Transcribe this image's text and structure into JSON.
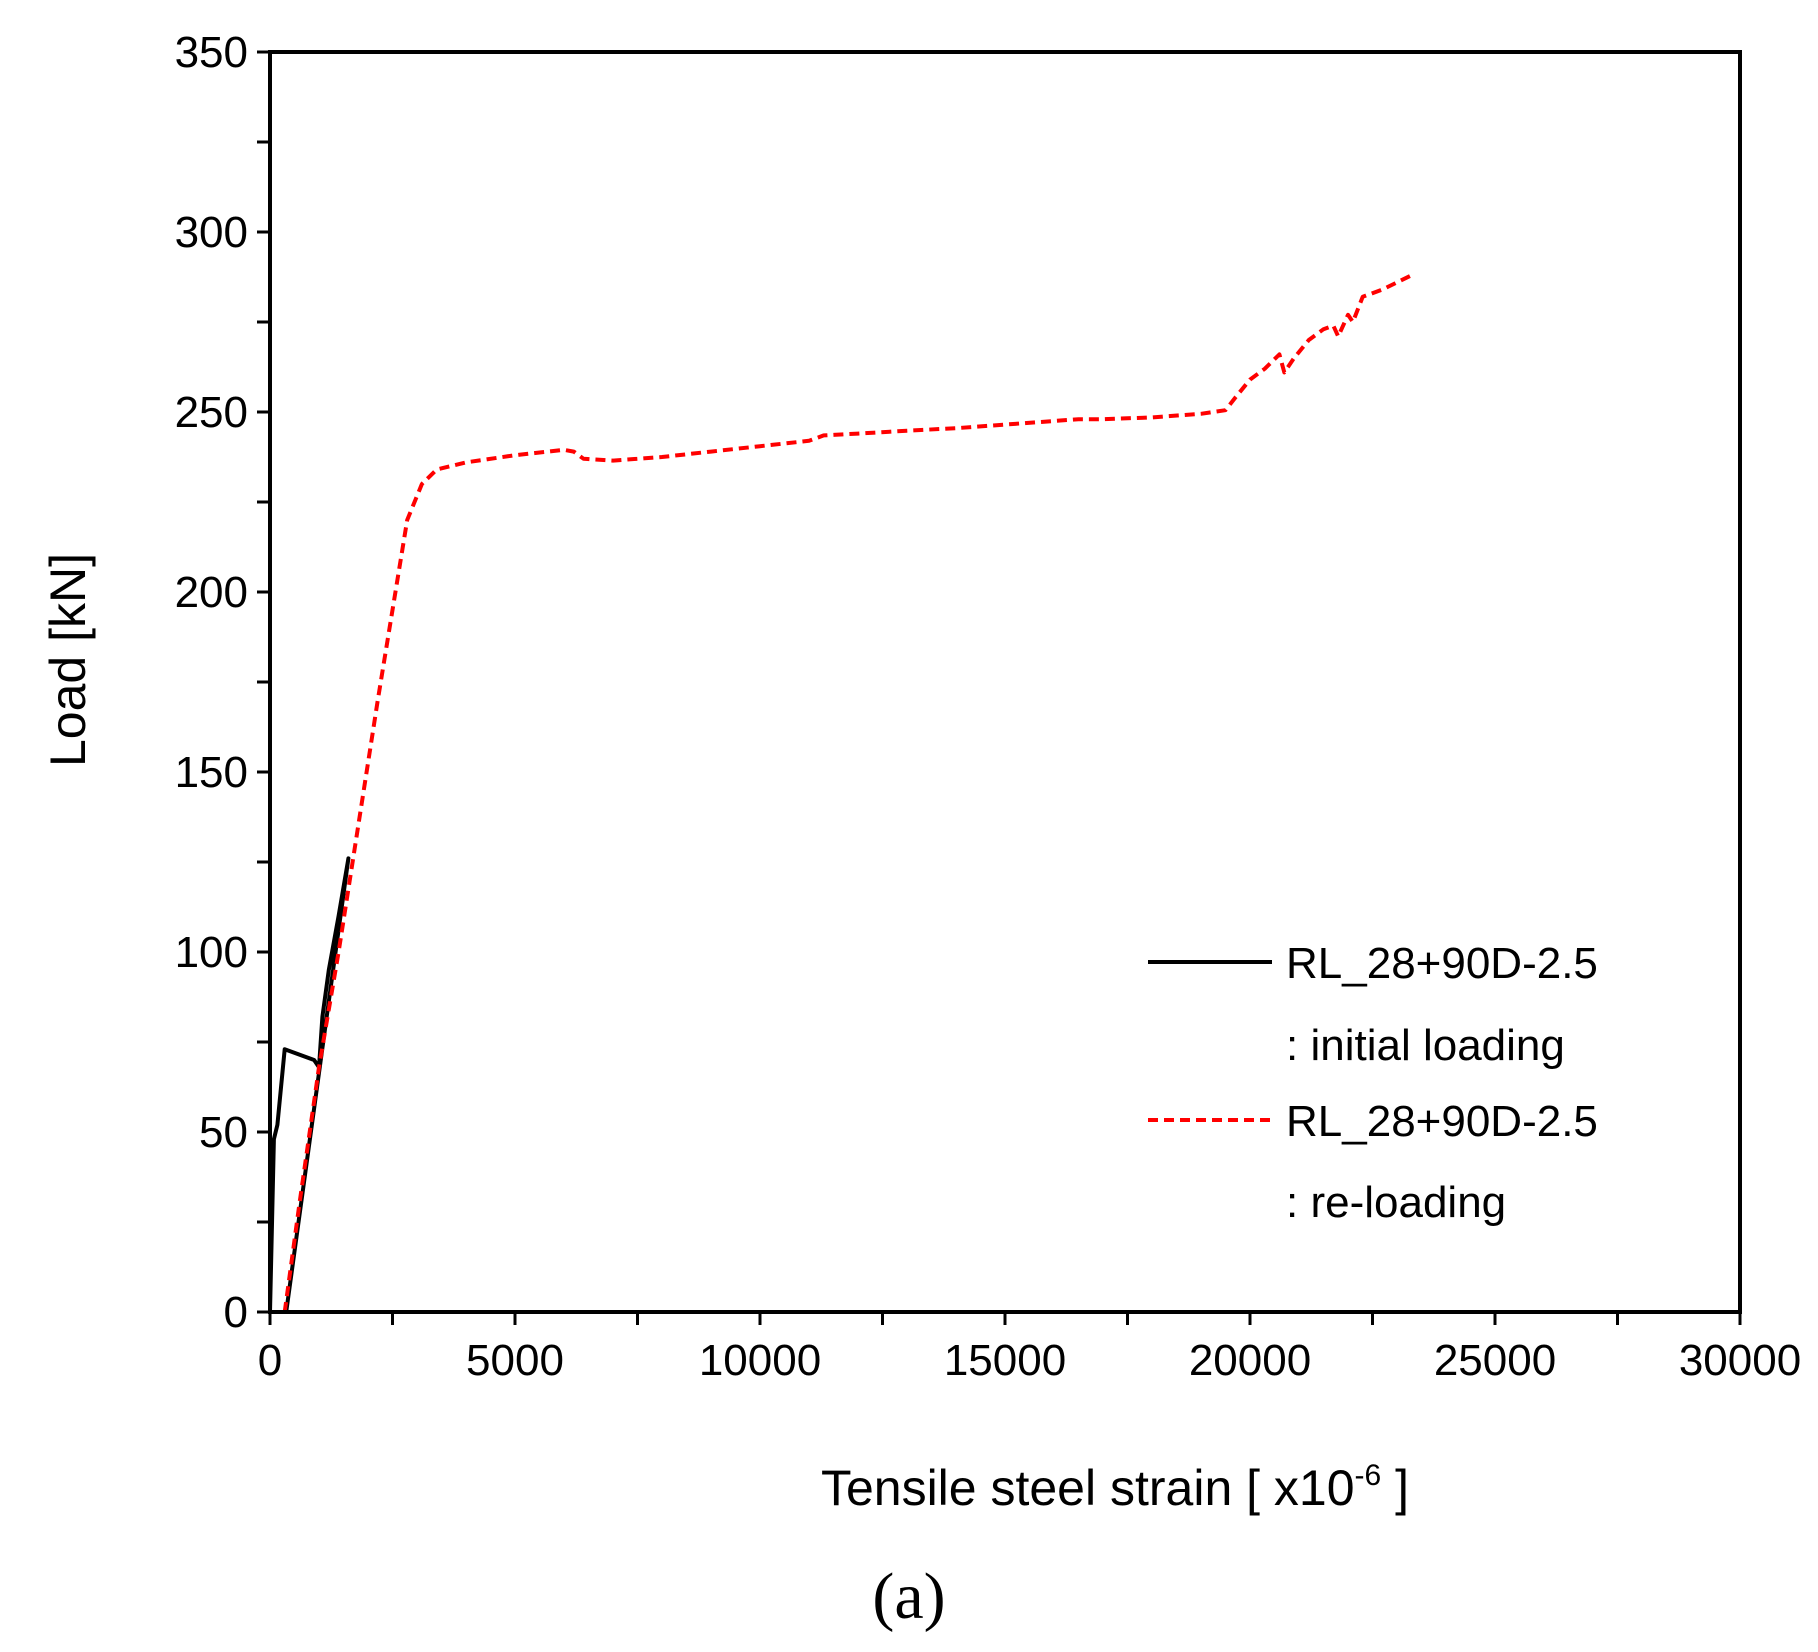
{
  "chart_data": {
    "type": "line",
    "title": "",
    "xlabel": "Tensile steel strain [ x10",
    "xlabel_sup": "-6",
    "xlabel_end": " ]",
    "ylabel": "Load [kN]",
    "xlim": [
      0,
      30000
    ],
    "ylim": [
      0,
      350
    ],
    "x_ticks": [
      "0",
      "5000",
      "10000",
      "15000",
      "20000",
      "25000",
      "30000"
    ],
    "y_ticks": [
      "0",
      "50",
      "100",
      "150",
      "200",
      "250",
      "300",
      "350"
    ],
    "grid": false,
    "legend_position": "lower-right",
    "legend": [
      {
        "line1": "RL_28+90D-2.5",
        "line2": ": initial loading"
      },
      {
        "line1": "RL_28+90D-2.5",
        "line2": ": re-loading"
      }
    ],
    "series": [
      {
        "name": "RL_28+90D-2.5 : initial loading",
        "color": "#000000",
        "dash": "solid",
        "points": [
          [
            0,
            0
          ],
          [
            80,
            48
          ],
          [
            150,
            52
          ],
          [
            300,
            73
          ],
          [
            900,
            70
          ],
          [
            1000,
            68
          ],
          [
            1060,
            80
          ],
          [
            1070,
            82
          ],
          [
            1200,
            95
          ],
          [
            1400,
            110
          ],
          [
            1600,
            126
          ],
          [
            330,
            0
          ]
        ]
      },
      {
        "name": "RL_28+90D-2.5 : re-loading",
        "color": "#ff0000",
        "dash": "dashed",
        "points": [
          [
            300,
            0
          ],
          [
            600,
            30
          ],
          [
            1000,
            68
          ],
          [
            1400,
            100
          ],
          [
            1800,
            135
          ],
          [
            2200,
            170
          ],
          [
            2500,
            195
          ],
          [
            2800,
            220
          ],
          [
            3100,
            230
          ],
          [
            3400,
            234
          ],
          [
            4000,
            236
          ],
          [
            5000,
            238
          ],
          [
            6000,
            239.5
          ],
          [
            6200,
            239
          ],
          [
            6400,
            237
          ],
          [
            7000,
            236.5
          ],
          [
            8000,
            237.5
          ],
          [
            9000,
            239
          ],
          [
            10000,
            240.5
          ],
          [
            11000,
            242
          ],
          [
            11300,
            243.5
          ],
          [
            12000,
            244
          ],
          [
            13000,
            244.8
          ],
          [
            14000,
            245.5
          ],
          [
            15000,
            246.5
          ],
          [
            16000,
            247.5
          ],
          [
            16500,
            248
          ],
          [
            17000,
            248
          ],
          [
            18000,
            248.5
          ],
          [
            19000,
            249.5
          ],
          [
            19500,
            250.5
          ],
          [
            19700,
            254
          ],
          [
            20000,
            259
          ],
          [
            20300,
            262
          ],
          [
            20600,
            266
          ],
          [
            20700,
            261
          ],
          [
            20900,
            265
          ],
          [
            21200,
            270
          ],
          [
            21500,
            273
          ],
          [
            21700,
            274
          ],
          [
            21800,
            271
          ],
          [
            22000,
            277
          ],
          [
            22100,
            275
          ],
          [
            22300,
            282
          ],
          [
            22700,
            284
          ],
          [
            23000,
            286
          ],
          [
            23300,
            288
          ]
        ]
      }
    ]
  },
  "panel_label": "(a)"
}
